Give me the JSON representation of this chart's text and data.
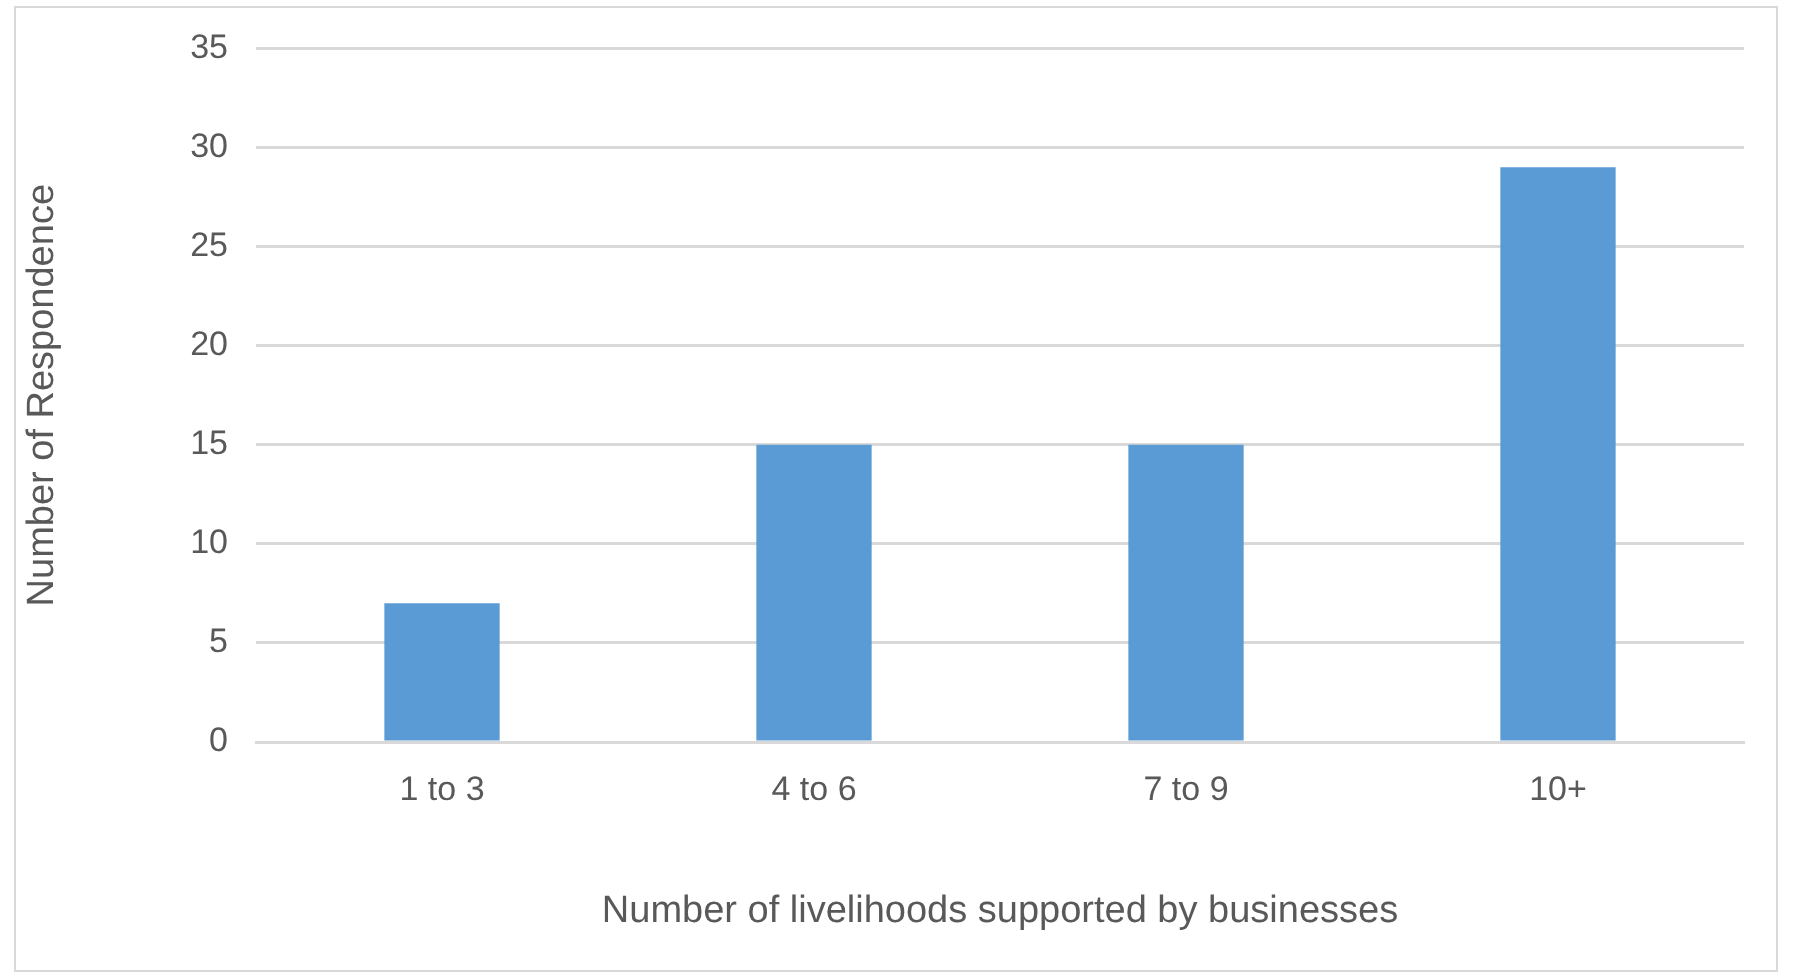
{
  "chart_data": {
    "type": "bar",
    "xlabel": "Number of livelihoods supported by businesses",
    "ylabel": "Number of Respondence",
    "categories": [
      "1 to 3",
      "4 to 6",
      "7 to 9",
      "10+"
    ],
    "values": [
      7,
      15,
      15,
      29
    ],
    "color": "#5b9bd5",
    "ylim": [
      0,
      35
    ],
    "yticks": [
      0,
      5,
      10,
      15,
      20,
      25,
      30,
      35
    ],
    "grid": "y"
  }
}
